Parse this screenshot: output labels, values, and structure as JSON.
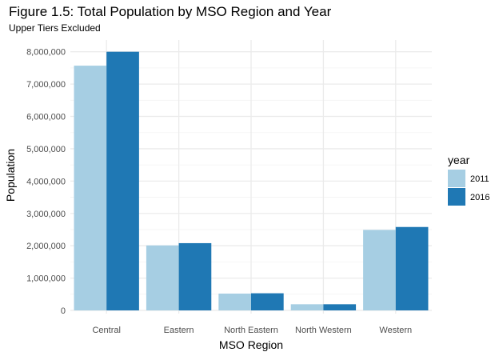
{
  "chart_data": {
    "type": "bar",
    "title": "Figure 1.5: Total Population by MSO Region and Year",
    "subtitle": "Upper Tiers Excluded",
    "xlabel": "MSO Region",
    "ylabel": "Population",
    "categories": [
      "Central",
      "Eastern",
      "North Eastern",
      "North Western",
      "Western"
    ],
    "series": [
      {
        "name": "2011",
        "color": "#a6cee3",
        "values": [
          7570000,
          2010000,
          520000,
          190000,
          2490000
        ]
      },
      {
        "name": "2016",
        "color": "#1f78b4",
        "values": [
          8000000,
          2080000,
          530000,
          190000,
          2580000
        ]
      }
    ],
    "ylim": [
      0,
      8000000
    ],
    "yticks": [
      0,
      1000000,
      2000000,
      3000000,
      4000000,
      5000000,
      6000000,
      7000000,
      8000000
    ],
    "ytick_labels": [
      "0",
      "1,000,000",
      "2,000,000",
      "3,000,000",
      "4,000,000",
      "5,000,000",
      "6,000,000",
      "7,000,000",
      "8,000,000"
    ],
    "grid": true,
    "legend": {
      "title": "year",
      "placement": "right"
    }
  }
}
